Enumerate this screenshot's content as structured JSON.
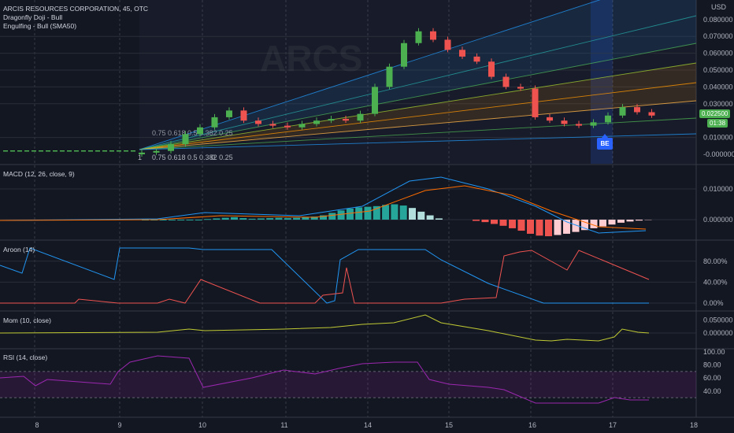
{
  "header": {
    "symbol_line": "ARCIS RESOURCES CORPORATION, 45, OTC",
    "indicators": [
      "Dragonfly Doji - Bull",
      "Engulfing - Bull (SMA50)"
    ],
    "watermark": "ARCS"
  },
  "currency": "USD",
  "price_axis": [
    "0.080000",
    "0.070000",
    "0.060000",
    "0.050000",
    "0.040000",
    "0.030000",
    "0.010000",
    "-0.000000"
  ],
  "last_price": {
    "value": "0.022500",
    "countdown": "01:38"
  },
  "badge": "BE",
  "fan_labels_top": "0.75 0.618 0.5 0.382 0.25",
  "fan_labels_bottom": [
    "1",
    "0.75 0.618 0.5 0.382 0.25",
    "0"
  ],
  "panes": {
    "macd": {
      "title": "MACD (12, 26, close, 9)",
      "axis": [
        "0.010000",
        "0.000000"
      ]
    },
    "aroon": {
      "title": "Aroon (14)",
      "axis": [
        "80.00%",
        "40.00%",
        "0.00%"
      ]
    },
    "mom": {
      "title": "Mom (10, close)",
      "axis": [
        "0.050000",
        "0.000000"
      ]
    },
    "rsi": {
      "title": "RSI (14, close)",
      "axis": [
        "100.00",
        "80.00",
        "60.00",
        "40.00"
      ]
    }
  },
  "time_axis": [
    "8",
    "9",
    "10",
    "11",
    "14",
    "15",
    "16",
    "17",
    "18"
  ],
  "colors": {
    "up": "#4caf50",
    "down": "#ef5350",
    "macd": "#2196f3",
    "signal": "#ff6d00",
    "rsi": "#9c27b0",
    "mom": "#c0ca33",
    "bg": "#131722"
  },
  "chart_data": {
    "type": "candlestick",
    "x_labels": [
      "8",
      "9",
      "10",
      "11",
      "14",
      "15",
      "16",
      "17"
    ],
    "approx_closes": [
      0.001,
      0.002,
      0.006,
      0.012,
      0.016,
      0.022,
      0.026,
      0.02,
      0.018,
      0.017,
      0.016,
      0.018,
      0.02,
      0.021,
      0.02,
      0.024,
      0.04,
      0.052,
      0.066,
      0.073,
      0.068,
      0.062,
      0.058,
      0.055,
      0.046,
      0.04,
      0.039,
      0.022,
      0.02,
      0.018,
      0.017,
      0.019,
      0.023,
      0.028,
      0.025,
      0.023
    ]
  }
}
